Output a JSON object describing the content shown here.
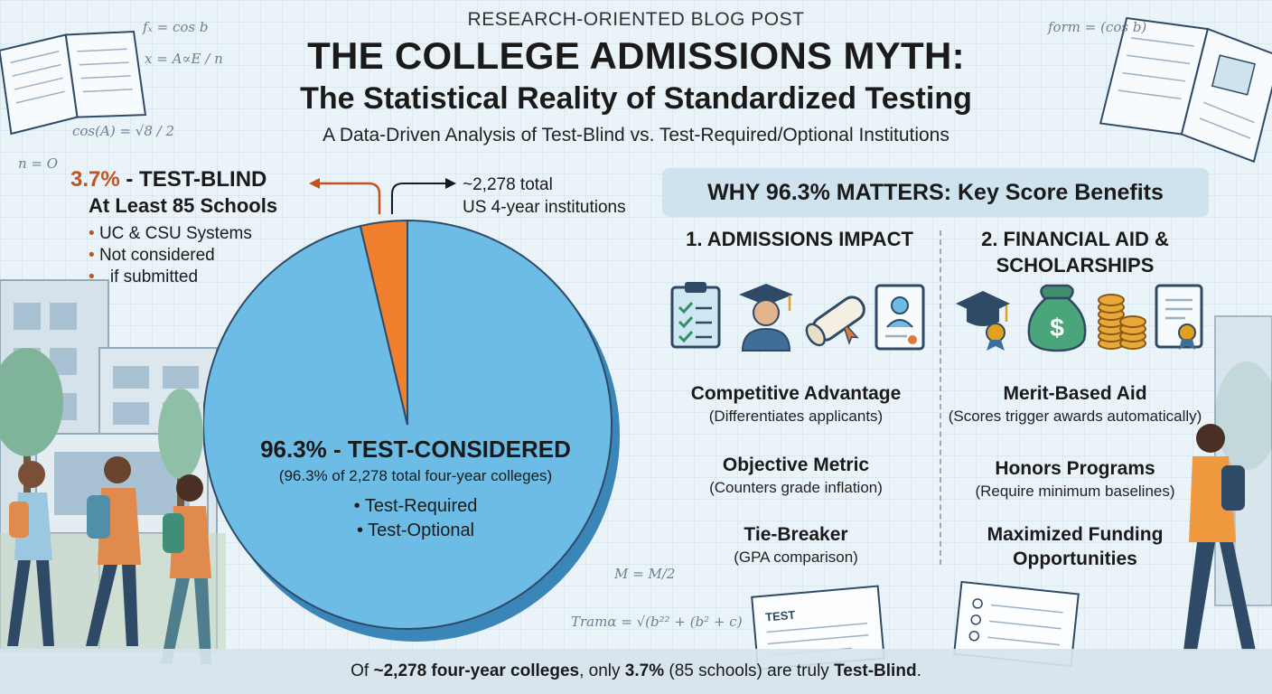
{
  "header": {
    "eyebrow": "RESEARCH-ORIENTED BLOG POST",
    "title": "THE COLLEGE ADMISSIONS MYTH:",
    "subtitle": "The Statistical Reality of Standardized Testing",
    "tagline": "A Data-Driven Analysis of Test-Blind vs. Test-Required/Optional Institutions"
  },
  "test_blind": {
    "pct_label": "3.7%",
    "label": " - TEST-BLIND",
    "count": "At Least 85 Schools",
    "bullets": [
      "UC & CSU Systems",
      "Not considered",
      "if submitted"
    ]
  },
  "total_note": {
    "line1": "~2,278 total",
    "line2": "US 4-year institutions"
  },
  "test_considered": {
    "label": "96.3% - TEST-CONSIDERED",
    "sub": "(96.3% of 2,278 total four-year colleges)",
    "bullets": [
      "Test-Required",
      "Test-Optional"
    ]
  },
  "chart_data": {
    "type": "pie",
    "total": 2278,
    "slices": [
      {
        "label": "TEST-BLIND",
        "value": 3.7,
        "count": 85,
        "color": "#f07f2e"
      },
      {
        "label": "TEST-CONSIDERED",
        "value": 96.3,
        "color": "#6cbce6"
      }
    ]
  },
  "benefits": {
    "heading": "WHY 96.3% MATTERS: Key Score Benefits",
    "admissions": {
      "heading": "1. ADMISSIONS IMPACT",
      "icons": [
        "clipboard-checklist-icon",
        "graduate-icon",
        "diploma-scroll-icon",
        "certificate-document-icon"
      ],
      "items": [
        {
          "title": "Competitive Advantage",
          "desc": "(Differentiates applicants)"
        },
        {
          "title": "Objective Metric",
          "desc": "(Counters grade inflation)"
        },
        {
          "title": "Tie-Breaker",
          "desc": "(GPA comparison)"
        }
      ]
    },
    "financial": {
      "heading_line1": "2. FINANCIAL AID &",
      "heading_line2": "SCHOLARSHIPS",
      "icons": [
        "graduation-cap-award-icon",
        "money-bag-icon",
        "coin-stacks-icon",
        "award-certificate-icon"
      ],
      "items": [
        {
          "title": "Merit-Based Aid",
          "desc": "(Scores trigger awards automatically)"
        },
        {
          "title": "Honors Programs",
          "desc": "(Require minimum baselines)"
        },
        {
          "title": "Maximized Funding",
          "title2": "Opportunities"
        }
      ]
    }
  },
  "footer": {
    "part1": "Of ",
    "part2": "~2,278 four-year colleges",
    "part3": ", only ",
    "part4": "3.7%",
    "part5": " (85 schools) are truly ",
    "part6": "Test-Blind",
    "part7": "."
  },
  "decor": {
    "formulas": [
      "fₓ = cos b",
      "x = A∝E / n",
      "cos(A) = √8 / 2",
      "n = O",
      "form = (cos b)",
      "M = M/2",
      "Tramα = √(b²² + (b² + c)"
    ],
    "test_paper_label": "TEST"
  },
  "colors": {
    "test_blind": "#f07f2e",
    "test_considered": "#6cbce6",
    "accent_text": "#c0531f",
    "box": "#cfe3ef"
  }
}
